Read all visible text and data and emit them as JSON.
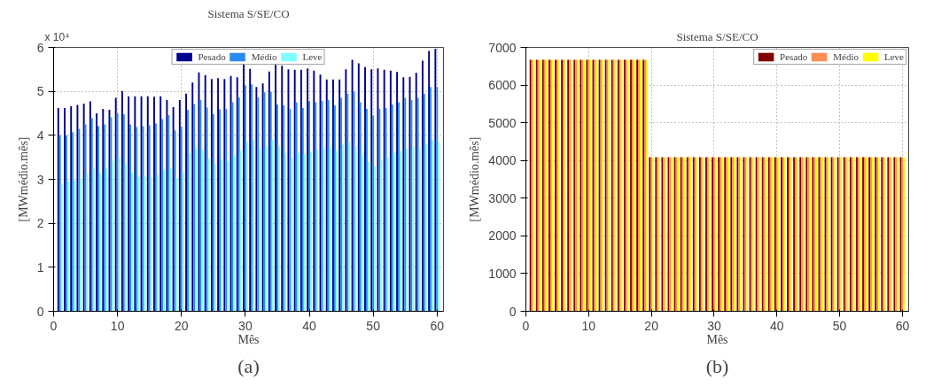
{
  "chart_data": [
    {
      "type": "bar",
      "title": "Sistema S/SE/CO",
      "xlabel": "Mês",
      "ylabel": "[MWmédio.mês]",
      "annotations": [
        "x 10⁴",
        "(a)"
      ],
      "x": [
        1,
        2,
        3,
        4,
        5,
        6,
        7,
        8,
        9,
        10,
        11,
        12,
        13,
        14,
        15,
        16,
        17,
        18,
        19,
        20,
        21,
        22,
        23,
        24,
        25,
        26,
        27,
        28,
        29,
        30,
        31,
        32,
        33,
        34,
        35,
        36,
        37,
        38,
        39,
        40,
        41,
        42,
        43,
        44,
        45,
        46,
        47,
        48,
        49,
        50,
        51,
        52,
        53,
        54,
        55,
        56,
        57,
        58,
        59,
        60
      ],
      "xlim": [
        0,
        61
      ],
      "xticks": [
        0,
        10,
        20,
        30,
        40,
        50,
        60
      ],
      "ylim": [
        0,
        6
      ],
      "yticks": [
        0,
        1,
        2,
        3,
        4,
        5,
        6
      ],
      "grid": true,
      "legend": "top",
      "series": [
        {
          "name": "Pesado",
          "color": "#00008f",
          "values": [
            4.62,
            4.62,
            4.66,
            4.69,
            4.72,
            4.77,
            4.5,
            4.6,
            4.58,
            4.85,
            5.01,
            4.89,
            4.89,
            4.89,
            4.89,
            4.88,
            4.89,
            4.8,
            4.64,
            4.8,
            4.95,
            5.2,
            5.43,
            5.37,
            5.28,
            5.3,
            5.28,
            5.35,
            5.32,
            5.63,
            5.51,
            5.1,
            5.18,
            5.45,
            5.6,
            5.58,
            5.5,
            5.49,
            5.49,
            5.52,
            5.47,
            5.38,
            5.27,
            5.27,
            5.27,
            5.5,
            5.72,
            5.64,
            5.55,
            5.5,
            5.52,
            5.49,
            5.47,
            5.44,
            5.32,
            5.33,
            5.42,
            5.7,
            5.92,
            5.97
          ]
        },
        {
          "name": "Médio",
          "color": "#2a8cf0",
          "values": [
            4.0,
            4.0,
            4.07,
            4.15,
            4.25,
            4.39,
            4.21,
            4.25,
            4.41,
            4.5,
            4.48,
            4.25,
            4.19,
            4.21,
            4.23,
            4.27,
            4.37,
            4.46,
            4.11,
            4.2,
            4.58,
            4.71,
            4.8,
            4.63,
            4.48,
            4.59,
            4.6,
            4.75,
            4.86,
            5.14,
            5.16,
            4.86,
            4.98,
            4.99,
            4.7,
            4.68,
            4.6,
            4.75,
            4.62,
            4.77,
            4.75,
            4.78,
            4.8,
            4.68,
            4.85,
            4.95,
            5.0,
            4.75,
            4.6,
            4.45,
            4.6,
            4.62,
            4.7,
            4.75,
            4.85,
            4.8,
            4.85,
            4.95,
            5.1,
            5.1
          ]
        },
        {
          "name": "Leve",
          "color": "#80ffff",
          "values": [
            2.9,
            2.95,
            2.97,
            3.0,
            3.12,
            3.25,
            3.14,
            3.25,
            3.42,
            3.5,
            3.36,
            3.15,
            3.05,
            3.07,
            3.05,
            3.1,
            3.2,
            3.25,
            3.02,
            3.17,
            3.6,
            3.7,
            3.67,
            3.47,
            3.35,
            3.45,
            3.42,
            3.55,
            3.65,
            3.85,
            3.9,
            3.7,
            3.75,
            3.9,
            3.75,
            3.6,
            3.5,
            3.6,
            3.58,
            3.63,
            3.67,
            3.72,
            3.72,
            3.65,
            3.8,
            3.85,
            3.75,
            3.55,
            3.4,
            3.3,
            3.45,
            3.5,
            3.6,
            3.65,
            3.7,
            3.75,
            3.7,
            3.8,
            3.9,
            3.85
          ]
        }
      ]
    },
    {
      "type": "bar",
      "title": "Sistema S/SE/CO",
      "xlabel": "Mês",
      "ylabel": "[MWmédio.mês]",
      "annotations": [
        "(b)"
      ],
      "x": [
        1,
        2,
        3,
        4,
        5,
        6,
        7,
        8,
        9,
        10,
        11,
        12,
        13,
        14,
        15,
        16,
        17,
        18,
        19,
        20,
        21,
        22,
        23,
        24,
        25,
        26,
        27,
        28,
        29,
        30,
        31,
        32,
        33,
        34,
        35,
        36,
        37,
        38,
        39,
        40,
        41,
        42,
        43,
        44,
        45,
        46,
        47,
        48,
        49,
        50,
        51,
        52,
        53,
        54,
        55,
        56,
        57,
        58,
        59,
        60
      ],
      "xlim": [
        0,
        61
      ],
      "xticks": [
        0,
        10,
        20,
        30,
        40,
        50,
        60
      ],
      "ylim": [
        0,
        7000
      ],
      "yticks": [
        0,
        1000,
        2000,
        3000,
        4000,
        5000,
        6000,
        7000
      ],
      "grid": true,
      "legend": "top right",
      "series": [
        {
          "name": "Pesado",
          "color": "#800000",
          "values": [
            6670,
            6670,
            6670,
            6670,
            6670,
            6670,
            6670,
            6670,
            6670,
            6670,
            6670,
            6670,
            6670,
            6670,
            6670,
            6670,
            6670,
            6670,
            6670,
            4090,
            4090,
            4090,
            4090,
            4090,
            4090,
            4090,
            4090,
            4090,
            4090,
            4090,
            4090,
            4090,
            4090,
            4090,
            4090,
            4090,
            4090,
            4090,
            4090,
            4090,
            4090,
            4090,
            4090,
            4090,
            4090,
            4090,
            4090,
            4090,
            4090,
            4090,
            4090,
            4090,
            4090,
            4090,
            4090,
            4090,
            4090,
            4090,
            4090,
            4090
          ]
        },
        {
          "name": "Médio",
          "color": "#ff8c55",
          "values": [
            6670,
            6670,
            6670,
            6670,
            6670,
            6670,
            6670,
            6670,
            6670,
            6670,
            6670,
            6670,
            6670,
            6670,
            6670,
            6670,
            6670,
            6670,
            6670,
            4090,
            4090,
            4090,
            4090,
            4090,
            4090,
            4090,
            4090,
            4090,
            4090,
            4090,
            4090,
            4090,
            4090,
            4090,
            4090,
            4090,
            4090,
            4090,
            4090,
            4090,
            4090,
            4090,
            4090,
            4090,
            4090,
            4090,
            4090,
            4090,
            4090,
            4090,
            4090,
            4090,
            4090,
            4090,
            4090,
            4090,
            4090,
            4090,
            4090,
            4090
          ]
        },
        {
          "name": "Leve",
          "color": "#ffff00",
          "values": [
            6670,
            6670,
            6670,
            6670,
            6670,
            6670,
            6670,
            6670,
            6670,
            6670,
            6670,
            6670,
            6670,
            6670,
            6670,
            6670,
            6670,
            6670,
            6670,
            4090,
            4090,
            4090,
            4090,
            4090,
            4090,
            4090,
            4090,
            4090,
            4090,
            4090,
            4090,
            4090,
            4090,
            4090,
            4090,
            4090,
            4090,
            4090,
            4090,
            4090,
            4090,
            4090,
            4090,
            4090,
            4090,
            4090,
            4090,
            4090,
            4090,
            4090,
            4090,
            4090,
            4090,
            4090,
            4090,
            4090,
            4090,
            4090,
            4090,
            4090
          ]
        }
      ]
    }
  ]
}
